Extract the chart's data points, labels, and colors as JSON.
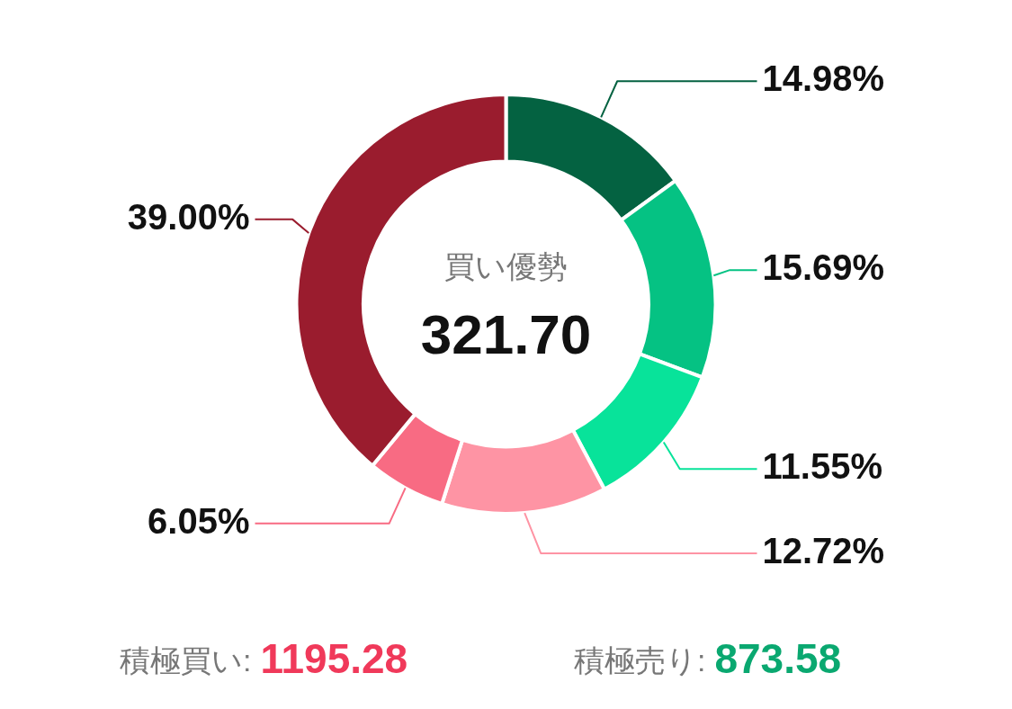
{
  "chart_data": {
    "type": "donut",
    "categories": [
      null,
      null,
      null,
      null,
      null,
      null
    ],
    "values": [
      14.98,
      15.69,
      11.55,
      12.72,
      6.05,
      39.0
    ],
    "colors": [
      "#046241",
      "#05c283",
      "#08e39a",
      "#fe94a4",
      "#f86b83",
      "#9a1c2e"
    ],
    "value_labels": [
      "14.98%",
      "15.69%",
      "11.55%",
      "12.72%",
      "6.05%",
      "39.00%"
    ],
    "annotations": [
      "買い優勢",
      "321.70",
      "積極買い:",
      "1195.28",
      "積極売り:",
      "873.58"
    ]
  }
}
